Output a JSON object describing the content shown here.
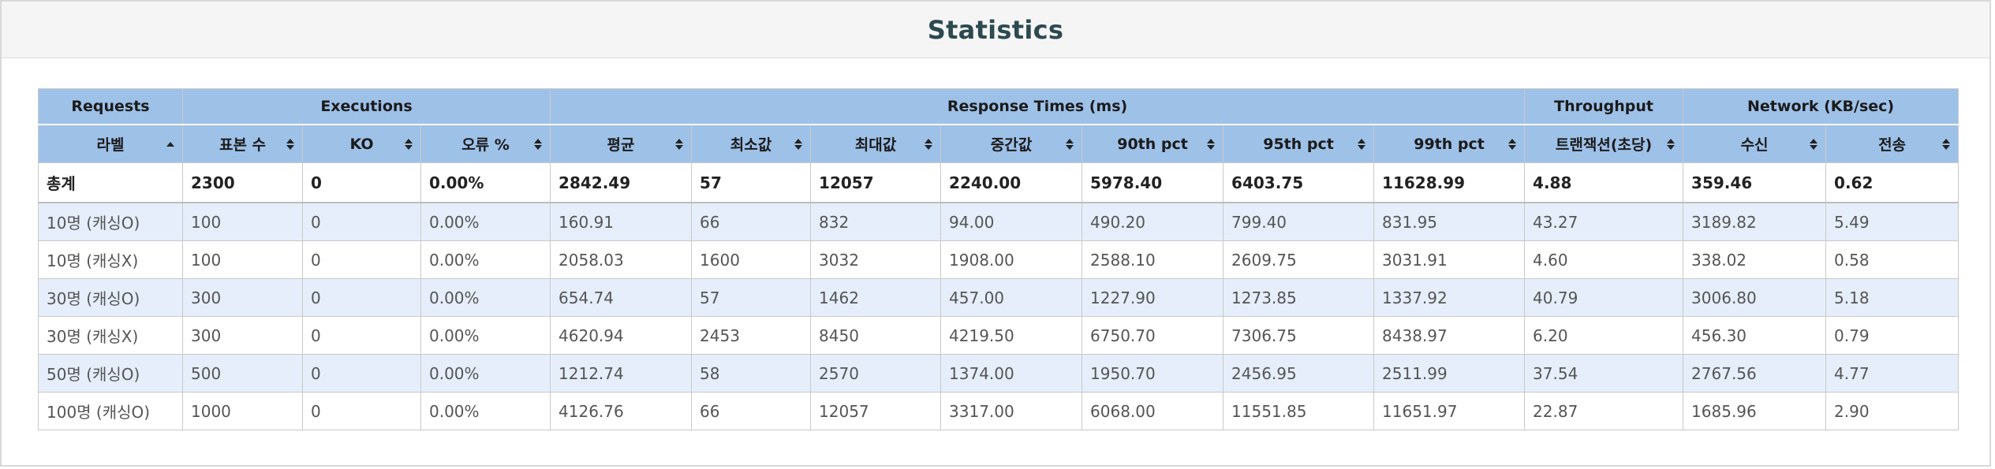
{
  "title": "Statistics",
  "groups": [
    {
      "label": "Requests",
      "span": 1
    },
    {
      "label": "Executions",
      "span": 3
    },
    {
      "label": "Response Times (ms)",
      "span": 7
    },
    {
      "label": "Throughput",
      "span": 1
    },
    {
      "label": "Network (KB/sec)",
      "span": 2
    }
  ],
  "columns": [
    {
      "label": "라벨",
      "sort": "asc"
    },
    {
      "label": "표본 수",
      "sort": "both"
    },
    {
      "label": "KO",
      "sort": "both"
    },
    {
      "label": "오류 %",
      "sort": "both"
    },
    {
      "label": "평균",
      "sort": "both"
    },
    {
      "label": "최소값",
      "sort": "both"
    },
    {
      "label": "최대값",
      "sort": "both"
    },
    {
      "label": "중간값",
      "sort": "both"
    },
    {
      "label": "90th pct",
      "sort": "both"
    },
    {
      "label": "95th pct",
      "sort": "both"
    },
    {
      "label": "99th pct",
      "sort": "both"
    },
    {
      "label": "트랜잭션(초당)",
      "sort": "both"
    },
    {
      "label": "수신",
      "sort": "both"
    },
    {
      "label": "전송",
      "sort": "both"
    }
  ],
  "total": [
    "총계",
    "2300",
    "0",
    "0.00%",
    "2842.49",
    "57",
    "12057",
    "2240.00",
    "5978.40",
    "6403.75",
    "11628.99",
    "4.88",
    "359.46",
    "0.62"
  ],
  "rows": [
    [
      "10명 (캐싱O)",
      "100",
      "0",
      "0.00%",
      "160.91",
      "66",
      "832",
      "94.00",
      "490.20",
      "799.40",
      "831.95",
      "43.27",
      "3189.82",
      "5.49"
    ],
    [
      "10명 (캐싱X)",
      "100",
      "0",
      "0.00%",
      "2058.03",
      "1600",
      "3032",
      "1908.00",
      "2588.10",
      "2609.75",
      "3031.91",
      "4.60",
      "338.02",
      "0.58"
    ],
    [
      "30명 (캐싱O)",
      "300",
      "0",
      "0.00%",
      "654.74",
      "57",
      "1462",
      "457.00",
      "1227.90",
      "1273.85",
      "1337.92",
      "40.79",
      "3006.80",
      "5.18"
    ],
    [
      "30명 (캐싱X)",
      "300",
      "0",
      "0.00%",
      "4620.94",
      "2453",
      "8450",
      "4219.50",
      "6750.70",
      "7306.75",
      "8438.97",
      "6.20",
      "456.30",
      "0.79"
    ],
    [
      "50명 (캐싱O)",
      "500",
      "0",
      "0.00%",
      "1212.74",
      "58",
      "2570",
      "1374.00",
      "1950.70",
      "2456.95",
      "2511.99",
      "37.54",
      "2767.56",
      "4.77"
    ],
    [
      "100명 (캐싱O)",
      "1000",
      "0",
      "0.00%",
      "4126.76",
      "66",
      "12057",
      "3317.00",
      "6068.00",
      "11551.85",
      "11651.97",
      "22.87",
      "1685.96",
      "2.90"
    ]
  ],
  "colors": {
    "header_bg": "#9ec1e8",
    "row_alt": "#e5eefa",
    "title": "#2c4a4f"
  }
}
